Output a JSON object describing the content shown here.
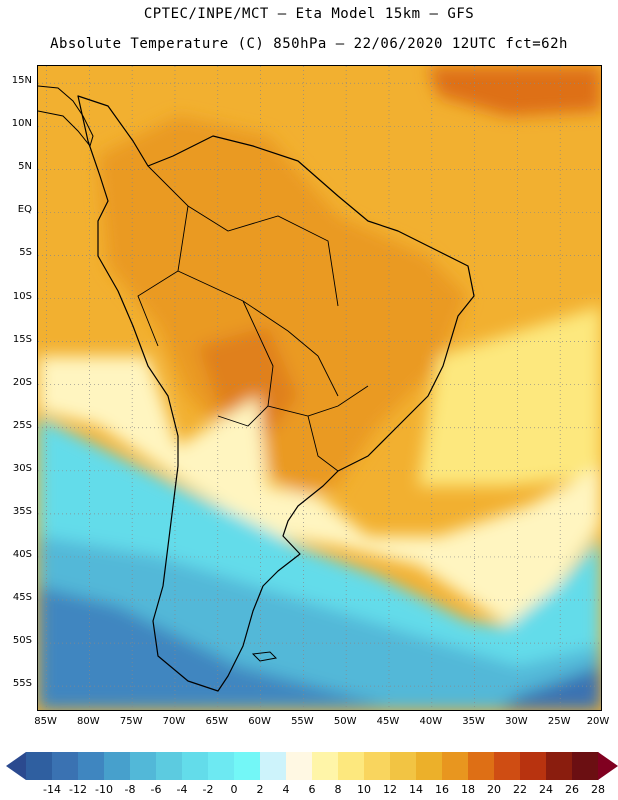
{
  "header": {
    "line1": "CPTEC/INPE/MCT –  Eta Model 15km – GFS",
    "line2": "Absolute Temperature (C) 850hPa – 22/06/2020 12UTC fct=62h"
  },
  "map": {
    "lat_ticks": [
      "15N",
      "10N",
      "5N",
      "EQ",
      "5S",
      "10S",
      "15S",
      "20S",
      "25S",
      "30S",
      "35S",
      "40S",
      "45S",
      "50S",
      "55S"
    ],
    "lon_ticks": [
      "85W",
      "80W",
      "75W",
      "70W",
      "65W",
      "60W",
      "55W",
      "50W",
      "45W",
      "40W",
      "35W",
      "30W",
      "25W",
      "20W"
    ],
    "extent": {
      "lon_min": -86,
      "lon_max": -20,
      "lat_min": -58,
      "lat_max": 17
    },
    "grid": "dotted",
    "feature": "South America coastline and political boundaries",
    "field": "temperature at 850hPa, warm (orange) north, cold (blue) south"
  },
  "colorbar": {
    "labels": [
      "-14",
      "-12",
      "-10",
      "-8",
      "-6",
      "-4",
      "-2",
      "0",
      "2",
      "4",
      "6",
      "8",
      "10",
      "12",
      "14",
      "16",
      "18",
      "20",
      "22",
      "24",
      "26",
      "28"
    ],
    "colors": [
      "#2b4a8f",
      "#2f5fa0",
      "#3a72b2",
      "#3f86c0",
      "#47a0cc",
      "#52b8d8",
      "#5ccbe0",
      "#63dcea",
      "#6de9f2",
      "#73f7f7",
      "#cdf3fb",
      "#fff8e3",
      "#fff5a8",
      "#fde87e",
      "#f9d55e",
      "#f2c443",
      "#ecb02a",
      "#e8961f",
      "#de6f15",
      "#cf4d13",
      "#b8330f",
      "#8a1d0e",
      "#6b0f12",
      "#800020"
    ]
  }
}
